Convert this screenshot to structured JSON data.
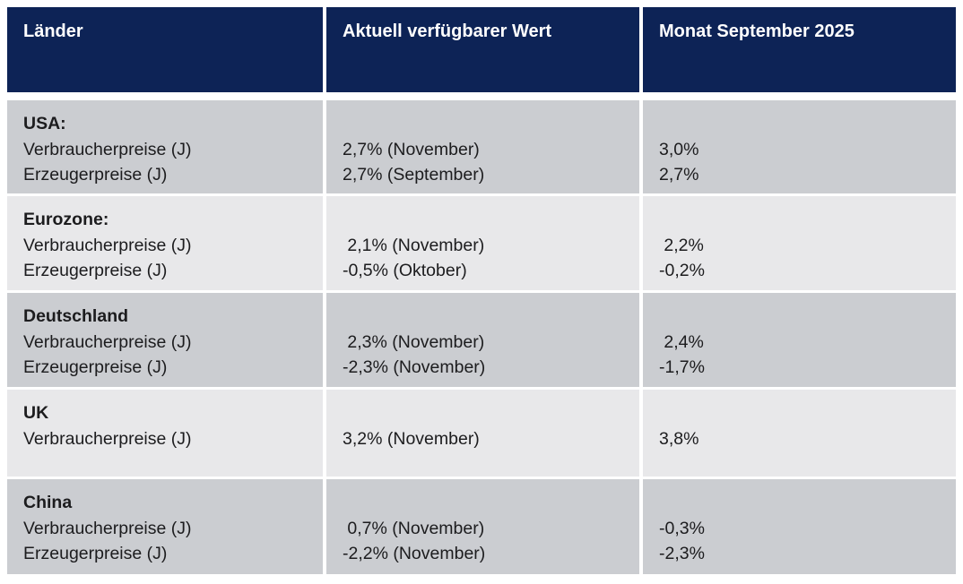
{
  "table": {
    "headers": [
      "Länder",
      "Aktuell verfügbarer Wert",
      "Monat September 2025"
    ],
    "rows": [
      {
        "country": "USA:",
        "metrics": [
          "Verbraucherpreise (J)",
          "Erzeugerpreise (J)"
        ],
        "current": [
          "2,7% (November)",
          "2,7% (September)"
        ],
        "september": [
          "3,0%",
          "2,7%"
        ]
      },
      {
        "country": "Eurozone:",
        "metrics": [
          "Verbraucherpreise (J)",
          "Erzeugerpreise (J)"
        ],
        "current": [
          " 2,1% (November)",
          "-0,5% (Oktober)"
        ],
        "september": [
          " 2,2%",
          "-0,2%"
        ]
      },
      {
        "country": "Deutschland",
        "metrics": [
          "Verbraucherpreise (J)",
          "Erzeugerpreise (J)"
        ],
        "current": [
          " 2,3% (November)",
          "-2,3% (November)"
        ],
        "september": [
          " 2,4%",
          "-1,7%"
        ]
      },
      {
        "country": "UK",
        "metrics": [
          "Verbraucherpreise (J)"
        ],
        "current": [
          "3,2% (November)"
        ],
        "september": [
          "3,8%"
        ]
      },
      {
        "country": "China",
        "metrics": [
          "Verbraucherpreise (J)",
          "Erzeugerpreise (J)"
        ],
        "current": [
          " 0,7% (November)",
          "-2,2% (November)"
        ],
        "september": [
          "-0,3%",
          "-2,3%"
        ]
      }
    ],
    "colors": {
      "header_bg": "#0d2356",
      "header_text": "#ffffff",
      "row_dark": "#cbcdd1",
      "row_light": "#e8e8ea",
      "text": "#1c1c1e"
    }
  },
  "chart_data": {
    "type": "table",
    "title": "",
    "columns": [
      "Länder",
      "Aktuell verfügbarer Wert",
      "Monat September 2025"
    ],
    "rows": [
      [
        "USA: Verbraucherpreise (J)",
        "2,7% (November)",
        "3,0%"
      ],
      [
        "USA: Erzeugerpreise (J)",
        "2,7% (September)",
        "2,7%"
      ],
      [
        "Eurozone: Verbraucherpreise (J)",
        "2,1% (November)",
        "2,2%"
      ],
      [
        "Eurozone: Erzeugerpreise (J)",
        "-0,5% (Oktober)",
        "-0,2%"
      ],
      [
        "Deutschland Verbraucherpreise (J)",
        "2,3% (November)",
        "2,4%"
      ],
      [
        "Deutschland Erzeugerpreise (J)",
        "-2,3% (November)",
        "-1,7%"
      ],
      [
        "UK Verbraucherpreise (J)",
        "3,2% (November)",
        "3,8%"
      ],
      [
        "China Verbraucherpreise (J)",
        "0,7% (November)",
        "-0,3%"
      ],
      [
        "China Erzeugerpreise (J)",
        "-2,2% (November)",
        "-2,3%"
      ]
    ]
  }
}
